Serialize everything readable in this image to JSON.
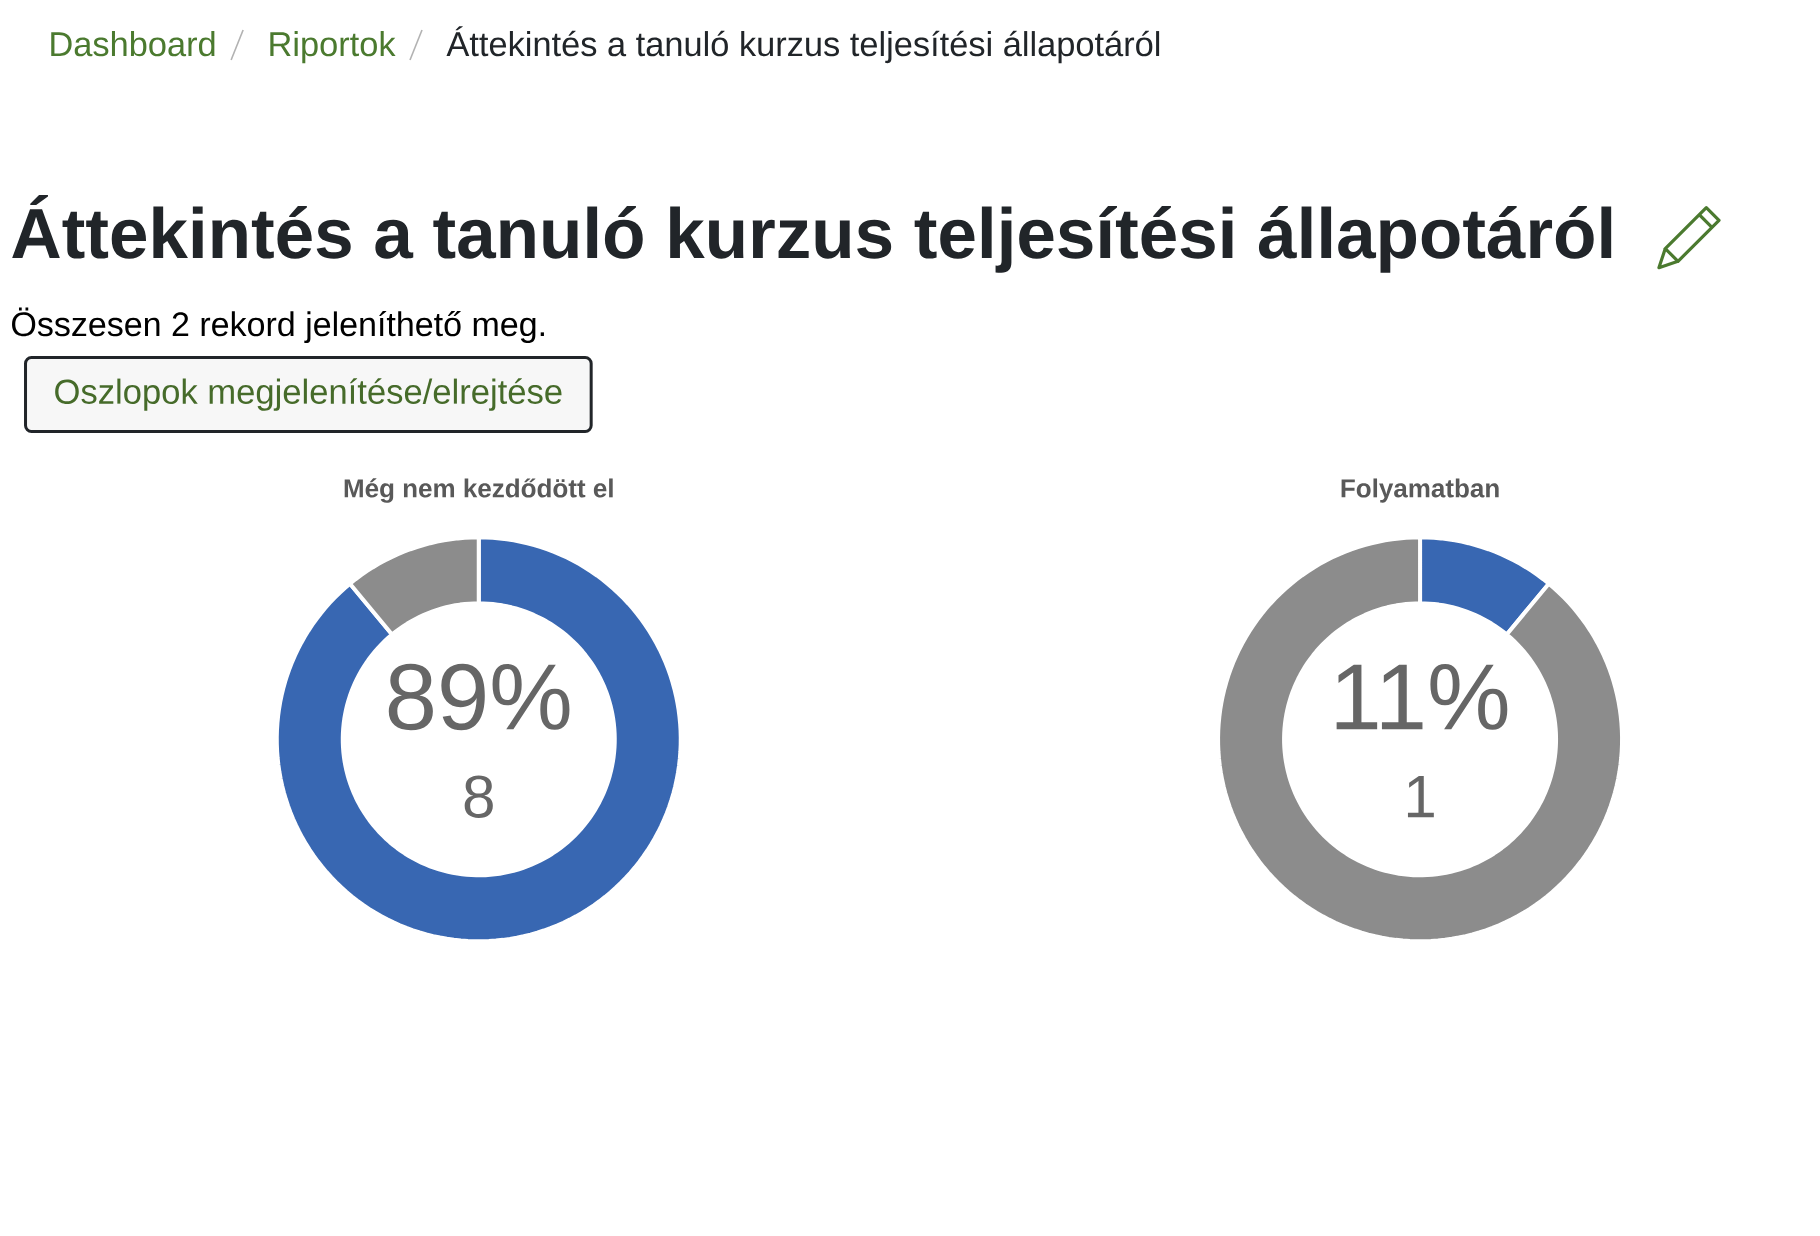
{
  "chart_data": [
    {
      "type": "other",
      "title": "Áttekintés a tanuló kurzus teljesítési állapotáról",
      "annotations": [
        "Dashboard",
        "Riportok",
        "Áttekintés a tanuló kurzus teljesítési állapotáról",
        "Összesen 2 rekord jeleníthető meg.",
        "Oszlopok megjelenítése/elrejtése"
      ]
    },
    {
      "type": "donut",
      "title": "Még nem kezdődött el",
      "categories": [
        null,
        null
      ],
      "values": [
        89,
        11
      ],
      "colors": [
        "#3867b2",
        "#8c8c8c"
      ],
      "annotations": [
        "89%",
        "8"
      ]
    },
    {
      "type": "donut",
      "title": "Folyamatban",
      "categories": [
        null,
        null
      ],
      "values": [
        11,
        89
      ],
      "colors": [
        "#3867b2",
        "#8c8c8c"
      ],
      "annotations": [
        "11%",
        "1"
      ]
    }
  ]
}
